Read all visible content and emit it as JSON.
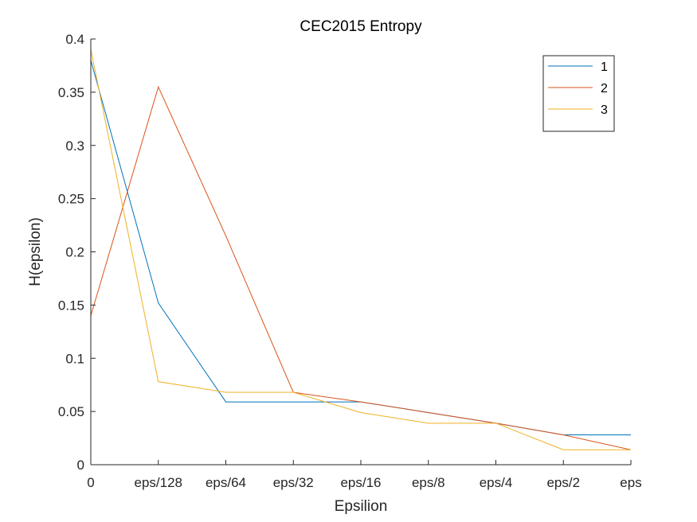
{
  "chart_data": {
    "type": "line",
    "title": "CEC2015 Entropy",
    "xlabel": "Epsilion",
    "ylabel": "H(epsilon)",
    "categories": [
      "0",
      "eps/128",
      "eps/64",
      "eps/32",
      "eps/16",
      "eps/8",
      "eps/4",
      "eps/2",
      "eps"
    ],
    "ylim": [
      0,
      0.4
    ],
    "yticks": [
      0,
      0.05,
      0.1,
      0.15,
      0.2,
      0.25,
      0.3,
      0.35,
      0.4
    ],
    "ytick_labels": [
      "0",
      "0.05",
      "0.1",
      "0.15",
      "0.2",
      "0.25",
      "0.3",
      "0.35",
      "0.4"
    ],
    "grid": false,
    "legend_position": "top-right",
    "series": [
      {
        "name": "1",
        "color": "#0072BD",
        "values": [
          0.38,
          0.152,
          0.059,
          0.059,
          0.059,
          0.049,
          0.039,
          0.028,
          0.028
        ]
      },
      {
        "name": "2",
        "color": "#D95319",
        "values": [
          0.14,
          0.355,
          0.215,
          0.068,
          0.059,
          0.049,
          0.039,
          0.028,
          0.014
        ]
      },
      {
        "name": "3",
        "color": "#EDB120",
        "values": [
          0.39,
          0.078,
          0.068,
          0.068,
          0.049,
          0.039,
          0.039,
          0.014,
          0.014
        ]
      }
    ]
  }
}
